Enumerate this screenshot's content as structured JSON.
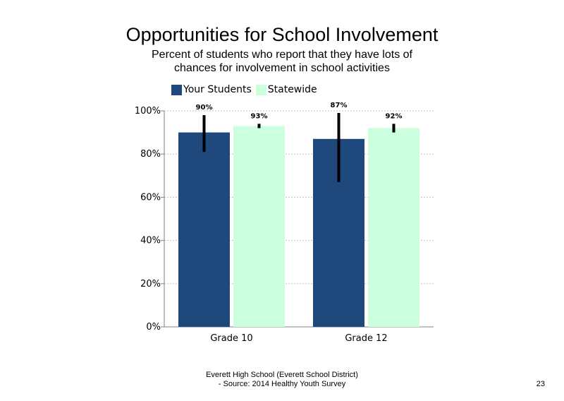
{
  "slide": {
    "footer_line1": "Everett High School (Everett School District)",
    "footer_line2": "- Source: 2014 Healthy Youth Survey",
    "page_number": "23"
  },
  "chart_data": {
    "type": "bar",
    "title": "Opportunities for School Involvement",
    "subtitle": "Percent of students who report that they have lots of chances for involvement in school activities",
    "categories": [
      "Grade 10",
      "Grade 12"
    ],
    "series": [
      {
        "name": "Your Students",
        "color": "#1F497D",
        "values": [
          90,
          87
        ],
        "labels": [
          "90%",
          "87%"
        ],
        "error_low": [
          81,
          67
        ],
        "error_high": [
          98,
          99
        ]
      },
      {
        "name": "Statewide",
        "color": "#CCFFDD",
        "values": [
          93,
          92
        ],
        "labels": [
          "93%",
          "92%"
        ],
        "error_low": [
          92,
          90
        ],
        "error_high": [
          94,
          94
        ]
      }
    ],
    "ylim": [
      0,
      100
    ],
    "yticks": [
      "0%",
      "20%",
      "40%",
      "60%",
      "80%",
      "100%"
    ],
    "ytick_values": [
      0,
      20,
      40,
      60,
      80,
      100
    ],
    "grid": true,
    "legend_position": "top-left"
  }
}
